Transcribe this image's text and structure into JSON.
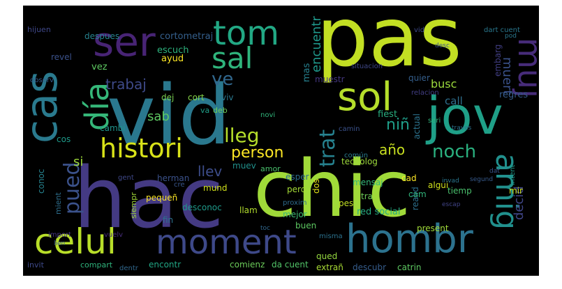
{
  "word_cloud": {
    "background_color": "#000000",
    "words": [
      {
        "text": "pas",
        "color": "#c2df23"
      },
      {
        "text": "vid",
        "color": "#2a788e"
      },
      {
        "text": "hac",
        "color": "#443a83"
      },
      {
        "text": "chic",
        "color": "#a0da39"
      },
      {
        "text": "cas",
        "color": "#2a7a8e"
      },
      {
        "text": "ser",
        "color": "#482475"
      },
      {
        "text": "tom",
        "color": "#22a884"
      },
      {
        "text": "sal",
        "color": "#2fb47c"
      },
      {
        "text": "sol",
        "color": "#b5de2b"
      },
      {
        "text": "jov",
        "color": "#1fa088"
      },
      {
        "text": "muj",
        "color": "#472c7a"
      },
      {
        "text": "día",
        "color": "#35b779"
      },
      {
        "text": "ve",
        "color": "#31688e"
      },
      {
        "text": "histori",
        "color": "#d8e219"
      },
      {
        "text": "hombr",
        "color": "#2c728e"
      },
      {
        "text": "moment",
        "color": "#3e4989"
      },
      {
        "text": "celul",
        "color": "#b8de29"
      },
      {
        "text": "amig",
        "color": "#21908d"
      },
      {
        "text": "pued",
        "color": "#3b528b"
      },
      {
        "text": "lleg",
        "color": "#b5de2b"
      },
      {
        "text": "noch",
        "color": "#2ab07f"
      },
      {
        "text": "trabaj",
        "color": "#3e4a89"
      },
      {
        "text": "encuentr",
        "color": "#1f988b"
      },
      {
        "text": "person",
        "color": "#fde725"
      },
      {
        "text": "trat",
        "color": "#26818e"
      },
      {
        "text": "niñ",
        "color": "#1f9e89"
      },
      {
        "text": "muert",
        "color": "#3b528b"
      },
      {
        "text": "decid",
        "color": "#404688"
      },
      {
        "text": "año",
        "color": "#c8e020"
      },
      {
        "text": "sab",
        "color": "#5ec962"
      },
      {
        "text": "si",
        "color": "#9fda3a"
      },
      {
        "text": "llev",
        "color": "#3d4d8a"
      },
      {
        "text": "busc",
        "color": "#9bd93c"
      },
      {
        "text": "call",
        "color": "#2e6f8e"
      },
      {
        "text": "regres",
        "color": "#365c8d"
      },
      {
        "text": "embarg",
        "color": "#423f85"
      },
      {
        "text": "mas",
        "color": "#27808e"
      },
      {
        "text": "cortometraj",
        "color": "#35608d"
      },
      {
        "text": "despues",
        "color": "#26828e"
      },
      {
        "text": "hijuen",
        "color": "#3f4788"
      },
      {
        "text": "ayud",
        "color": "#fde725"
      },
      {
        "text": "escuch",
        "color": "#2db27d"
      },
      {
        "text": "vez",
        "color": "#5ec962"
      },
      {
        "text": "revel",
        "color": "#3b528b"
      },
      {
        "text": "dej",
        "color": "#7ad151"
      },
      {
        "text": "cort",
        "color": "#86d549"
      },
      {
        "text": "viv",
        "color": "#2a788e"
      },
      {
        "text": "deb",
        "color": "#6ece58"
      },
      {
        "text": "va",
        "color": "#1f9f88"
      },
      {
        "text": "cambi",
        "color": "#1f948c"
      },
      {
        "text": "cos",
        "color": "#1e9b8a"
      },
      {
        "text": "muev",
        "color": "#21918c"
      },
      {
        "text": "amor",
        "color": "#4ac16d"
      },
      {
        "text": "fiest",
        "color": "#29af7f"
      },
      {
        "text": "actual",
        "color": "#2c738e"
      },
      {
        "text": "muestr",
        "color": "#453781"
      },
      {
        "text": "quier",
        "color": "#355f8d"
      },
      {
        "text": "tecnolog",
        "color": "#9dd93b"
      },
      {
        "text": "cad",
        "color": "#fde725"
      },
      {
        "text": "realid",
        "color": "#2d708e"
      },
      {
        "text": "algui",
        "color": "#d0e11c"
      },
      {
        "text": "mir",
        "color": "#cde11d"
      },
      {
        "text": "tiemp",
        "color": "#4ac16d"
      },
      {
        "text": "cam",
        "color": "#31b57b"
      },
      {
        "text": "tra",
        "color": "#6ece58"
      },
      {
        "text": "mensaj",
        "color": "#35b779"
      },
      {
        "text": "dos",
        "color": "#e5e419"
      },
      {
        "text": "perd",
        "color": "#a5db36"
      },
      {
        "text": "esper",
        "color": "#2e6e8e"
      },
      {
        "text": "pes",
        "color": "#c2df23"
      },
      {
        "text": "red social",
        "color": "#27ad81"
      },
      {
        "text": "buen",
        "color": "#5ec962"
      },
      {
        "text": "mejor",
        "color": "#3dbc74"
      },
      {
        "text": "llam",
        "color": "#b2dd2d"
      },
      {
        "text": "fin",
        "color": "#2c738e"
      },
      {
        "text": "desconoc",
        "color": "#1f9a8a"
      },
      {
        "text": "siempr",
        "color": "#a2da37"
      },
      {
        "text": "pequeñ",
        "color": "#fde725"
      },
      {
        "text": "mund",
        "color": "#d2e21b"
      },
      {
        "text": "herman",
        "color": "#3b528b"
      },
      {
        "text": "conoc",
        "color": "#26828e"
      },
      {
        "text": "mient",
        "color": "#2e6f8e"
      },
      {
        "text": "qued",
        "color": "#95d840"
      },
      {
        "text": "encontr",
        "color": "#22a785"
      },
      {
        "text": "comienz",
        "color": "#6ccd5a"
      },
      {
        "text": "da cuent",
        "color": "#52c569"
      },
      {
        "text": "extrañ",
        "color": "#a8db34"
      },
      {
        "text": "descubr",
        "color": "#365d8d"
      },
      {
        "text": "catrin",
        "color": "#5ec962"
      },
      {
        "text": "invit",
        "color": "#3e4989"
      },
      {
        "text": "compart",
        "color": "#2fb47c"
      },
      {
        "text": "dentr",
        "color": "#31688e"
      },
      {
        "text": "present",
        "color": "#a0da39"
      },
      {
        "text": "vuelv",
        "color": "#472d7b"
      },
      {
        "text": "import",
        "color": "#453581"
      },
      {
        "text": "gent",
        "color": "#3f4889"
      },
      {
        "text": "dart cuent",
        "color": "#2a788e"
      },
      {
        "text": "cre",
        "color": "#39568c"
      },
      {
        "text": "vid",
        "color": "#3e4989"
      },
      {
        "text": "camin",
        "color": "#3b528b"
      },
      {
        "text": "común",
        "color": "#2a7b8e"
      },
      {
        "text": "situacion",
        "color": "#3f4788"
      },
      {
        "text": "relacion",
        "color": "#433e85"
      },
      {
        "text": "misma",
        "color": "#2c728e"
      },
      {
        "text": "proxim",
        "color": "#2f6c8e"
      },
      {
        "text": "segund",
        "color": "#375a8c"
      },
      {
        "text": "dat",
        "color": "#3a548c"
      },
      {
        "text": "invad",
        "color": "#2a768e"
      },
      {
        "text": "traves",
        "color": "#2d718e"
      },
      {
        "text": "intent",
        "color": "#1f9a8a"
      },
      {
        "text": "observ",
        "color": "#355e8d"
      },
      {
        "text": "novi",
        "color": "#31b57b"
      },
      {
        "text": "toc",
        "color": "#31688e"
      },
      {
        "text": "pod",
        "color": "#2a788e"
      },
      {
        "text": "desc",
        "color": "#3b528b"
      },
      {
        "text": "seri",
        "color": "#2fb47c"
      },
      {
        "text": "lien",
        "color": "#39568c"
      },
      {
        "text": "escap",
        "color": "#414487"
      }
    ]
  }
}
